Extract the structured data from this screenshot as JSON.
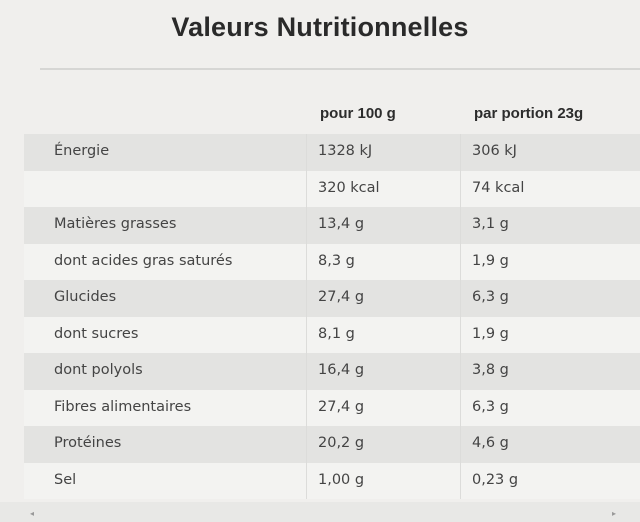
{
  "title": "Valeurs Nutritionnelles",
  "columns": [
    "pour 100 g",
    "par portion 23g"
  ],
  "rows": [
    {
      "label": "Énergie",
      "per100": "1328 kJ",
      "portion": "306 kJ"
    },
    {
      "label": "",
      "per100": "320 kcal",
      "portion": "74 kcal"
    },
    {
      "label": "Matières grasses",
      "per100": "13,4 g",
      "portion": "3,1 g"
    },
    {
      "label": "dont acides gras saturés",
      "per100": "8,3 g",
      "portion": "1,9 g"
    },
    {
      "label": "Glucides",
      "per100": "27,4 g",
      "portion": "6,3 g"
    },
    {
      "label": "dont sucres",
      "per100": "8,1 g",
      "portion": "1,9 g"
    },
    {
      "label": "dont polyols",
      "per100": "16,4 g",
      "portion": "3,8 g"
    },
    {
      "label": "Fibres alimentaires",
      "per100": "27,4 g",
      "portion": "6,3 g"
    },
    {
      "label": "Protéines",
      "per100": "20,2 g",
      "portion": "4,6 g"
    },
    {
      "label": "Sel",
      "per100": "1,00 g",
      "portion": "0,23 g"
    }
  ]
}
